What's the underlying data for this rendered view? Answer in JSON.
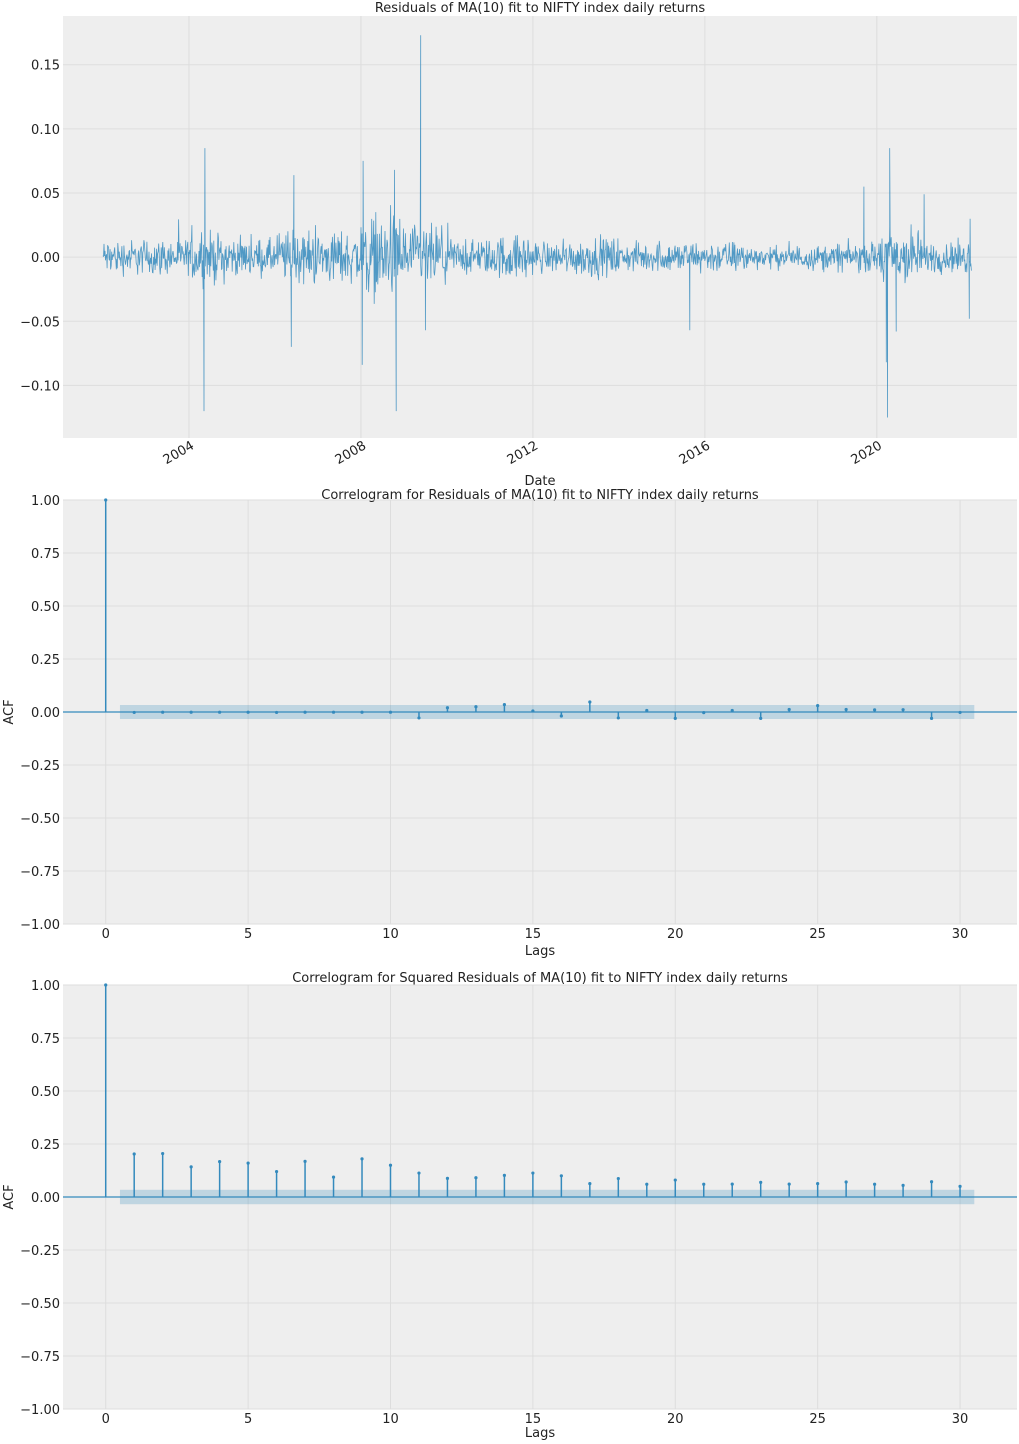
{
  "colors": {
    "line": "#348abd",
    "band": "#348abd",
    "plot_bg": "#eeeeee",
    "grid": "#dddddd"
  },
  "chart_data": [
    {
      "type": "line",
      "title": "Residuals of MA(10) fit to NIFTY index daily returns",
      "xlabel": "Date",
      "ylabel": "",
      "xlim": [
        2001.07,
        2023.26
      ],
      "ylim": [
        -0.141,
        0.188
      ],
      "grid": true,
      "xticks": [
        2004,
        2008,
        2012,
        2016,
        2020
      ],
      "xtick_labels": [
        "2004",
        "2008",
        "2012",
        "2016",
        "2020"
      ],
      "yticks": [
        -0.1,
        -0.05,
        0.0,
        0.05,
        0.1,
        0.15
      ],
      "ytick_labels": [
        "−0.10",
        "−0.05",
        "0.00",
        "0.05",
        "0.10",
        "0.15"
      ],
      "date_range": [
        2002.0,
        2022.2
      ],
      "typical_amplitude_by_year": {
        "2002": 0.02,
        "2003": 0.02,
        "2004": 0.028,
        "2005": 0.02,
        "2006": 0.03,
        "2007": 0.03,
        "2008": 0.045,
        "2009": 0.035,
        "2010": 0.02,
        "2011": 0.025,
        "2012": 0.018,
        "2013": 0.022,
        "2014": 0.016,
        "2015": 0.018,
        "2016": 0.018,
        "2017": 0.012,
        "2018": 0.014,
        "2019": 0.016,
        "2020": 0.035,
        "2021": 0.018,
        "2022": 0.02
      },
      "notable_points": [
        {
          "x": 2004.37,
          "y": 0.085
        },
        {
          "x": 2004.35,
          "y": -0.12
        },
        {
          "x": 2006.44,
          "y": 0.064
        },
        {
          "x": 2006.38,
          "y": -0.07
        },
        {
          "x": 2008.05,
          "y": 0.075
        },
        {
          "x": 2008.03,
          "y": -0.084
        },
        {
          "x": 2008.78,
          "y": 0.068
        },
        {
          "x": 2008.82,
          "y": -0.12
        },
        {
          "x": 2009.39,
          "y": 0.173
        },
        {
          "x": 2009.5,
          "y": -0.057
        },
        {
          "x": 2015.65,
          "y": -0.057
        },
        {
          "x": 2019.7,
          "y": 0.055
        },
        {
          "x": 2020.3,
          "y": 0.085
        },
        {
          "x": 2020.25,
          "y": -0.125
        },
        {
          "x": 2020.22,
          "y": -0.082
        },
        {
          "x": 2020.45,
          "y": -0.058
        },
        {
          "x": 2021.1,
          "y": 0.049
        },
        {
          "x": 2022.15,
          "y": -0.048
        },
        {
          "x": 2022.17,
          "y": 0.03
        }
      ]
    },
    {
      "type": "stem",
      "title": "Correlogram for Residuals of MA(10) fit to NIFTY index daily returns",
      "xlabel": "Lags",
      "ylabel": "ACF",
      "xlim": [
        -1.5,
        32.0
      ],
      "ylim": [
        -1.0,
        1.0
      ],
      "grid": true,
      "xticks": [
        0,
        5,
        10,
        15,
        20,
        25,
        30
      ],
      "xtick_labels": [
        "0",
        "5",
        "10",
        "15",
        "20",
        "25",
        "30"
      ],
      "yticks": [
        -1.0,
        -0.75,
        -0.5,
        -0.25,
        0.0,
        0.25,
        0.5,
        0.75,
        1.0
      ],
      "ytick_labels": [
        "−1.00",
        "−0.75",
        "−0.50",
        "−0.25",
        "0.00",
        "0.25",
        "0.50",
        "0.75",
        "1.00"
      ],
      "confidence_band": 0.033,
      "lags": [
        0,
        1,
        2,
        3,
        4,
        5,
        6,
        7,
        8,
        9,
        10,
        11,
        12,
        13,
        14,
        15,
        16,
        17,
        18,
        19,
        20,
        21,
        22,
        23,
        24,
        25,
        26,
        27,
        28,
        29,
        30
      ],
      "values": [
        1.0,
        -0.002,
        -0.001,
        -0.001,
        -0.001,
        -0.001,
        -0.002,
        -0.001,
        -0.001,
        -0.001,
        -0.001,
        -0.028,
        0.02,
        0.025,
        0.035,
        0.005,
        -0.019,
        0.047,
        -0.028,
        0.007,
        -0.03,
        -0.003,
        0.007,
        -0.03,
        0.012,
        0.03,
        0.012,
        0.01,
        0.011,
        -0.03,
        -0.002
      ]
    },
    {
      "type": "stem",
      "title": "Correlogram for Squared Residuals of MA(10) fit to NIFTY index daily returns",
      "xlabel": "Lags",
      "ylabel": "ACF",
      "xlim": [
        -1.5,
        32.0
      ],
      "ylim": [
        -1.0,
        1.0
      ],
      "grid": true,
      "xticks": [
        0,
        5,
        10,
        15,
        20,
        25,
        30
      ],
      "xtick_labels": [
        "0",
        "5",
        "10",
        "15",
        "20",
        "25",
        "30"
      ],
      "yticks": [
        -1.0,
        -0.75,
        -0.5,
        -0.25,
        0.0,
        0.25,
        0.5,
        0.75,
        1.0
      ],
      "ytick_labels": [
        "−1.00",
        "−0.75",
        "−0.50",
        "−0.25",
        "0.00",
        "0.25",
        "0.50",
        "0.75",
        "1.00"
      ],
      "confidence_band": 0.034,
      "lags": [
        0,
        1,
        2,
        3,
        4,
        5,
        6,
        7,
        8,
        9,
        10,
        11,
        12,
        13,
        14,
        15,
        16,
        17,
        18,
        19,
        20,
        21,
        22,
        23,
        24,
        25,
        26,
        27,
        28,
        29,
        30
      ],
      "values": [
        1.0,
        0.203,
        0.205,
        0.142,
        0.167,
        0.16,
        0.12,
        0.168,
        0.094,
        0.18,
        0.15,
        0.113,
        0.088,
        0.091,
        0.102,
        0.113,
        0.1,
        0.063,
        0.087,
        0.06,
        0.08,
        0.06,
        0.061,
        0.069,
        0.061,
        0.063,
        0.071,
        0.06,
        0.055,
        0.072,
        0.05
      ]
    }
  ]
}
